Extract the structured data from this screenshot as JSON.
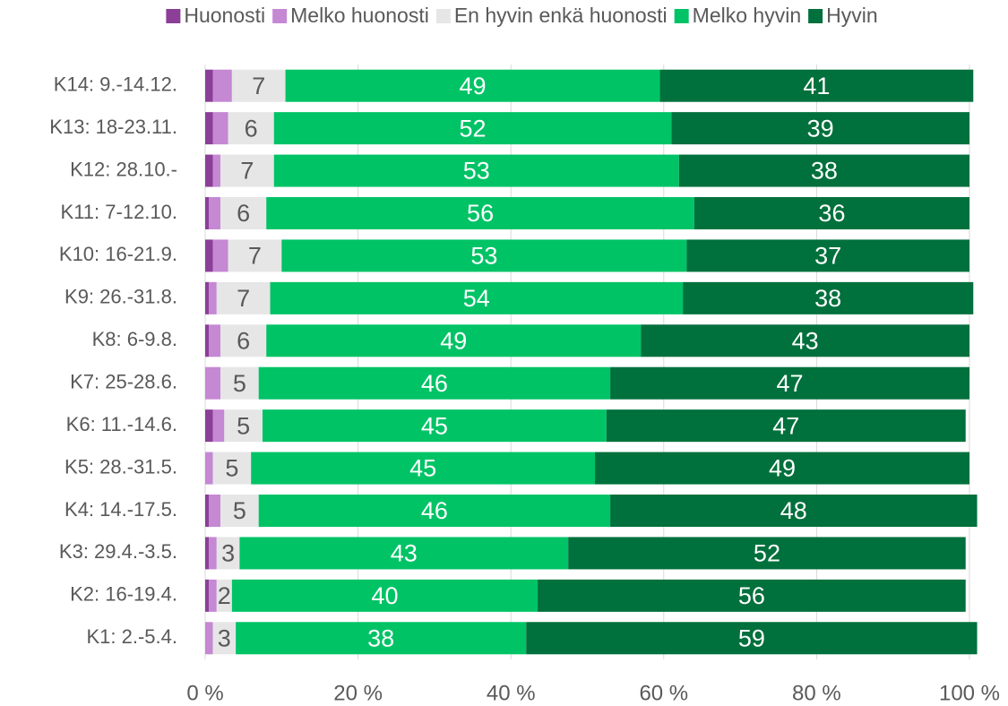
{
  "chart_data": {
    "type": "stacked_barh",
    "categories": [
      "K14: 9.-14.12.",
      "K13: 18-23.11.",
      "K12: 28.10.-",
      "K11: 7-12.10.",
      "K10: 16-21.9.",
      "K9: 26.-31.8.",
      "K8: 6-9.8.",
      "K7: 25-28.6.",
      "K6: 11.-14.6.",
      "K5: 28.-31.5.",
      "K4: 14.-17.5.",
      "K3: 29.4.-3.5.",
      "K2: 16-19.4.",
      "K1: 2.-5.4."
    ],
    "series": [
      {
        "name": "Huonosti",
        "color": "#8b3f97",
        "data_labels": false,
        "values": [
          1,
          1,
          1,
          0.5,
          1,
          0.5,
          0.5,
          0,
          1,
          0,
          0.5,
          0.5,
          0.5,
          0
        ]
      },
      {
        "name": "Melko huonosti",
        "color": "#c588d3",
        "data_labels": false,
        "values": [
          2.5,
          2,
          1,
          1.5,
          2,
          1,
          1.5,
          2,
          1.5,
          1,
          1.5,
          1,
          1,
          1
        ]
      },
      {
        "name": "En hyvin enkä huonosti",
        "color": "#e6e6e6",
        "data_labels": true,
        "label_color": "#595959",
        "values": [
          7,
          6,
          7,
          6,
          7,
          7,
          6,
          5,
          5,
          5,
          5,
          3,
          2,
          3
        ]
      },
      {
        "name": "Melko hyvin",
        "color": "#00c366",
        "data_labels": true,
        "label_color": "#ffffff",
        "values": [
          49,
          52,
          53,
          56,
          53,
          54,
          49,
          46,
          45,
          45,
          46,
          43,
          40,
          38
        ]
      },
      {
        "name": "Hyvin",
        "color": "#00703c",
        "data_labels": true,
        "label_color": "#ffffff",
        "values": [
          41,
          39,
          38,
          36,
          37,
          38,
          43,
          47,
          47,
          49,
          48,
          52,
          56,
          59
        ]
      }
    ],
    "xlim": [
      0,
      100
    ],
    "xticks": [
      {
        "value": 0,
        "label": "0 %"
      },
      {
        "value": 20,
        "label": "20 %"
      },
      {
        "value": 40,
        "label": "40 %"
      },
      {
        "value": 60,
        "label": "60 %"
      },
      {
        "value": 80,
        "label": "80 %"
      },
      {
        "value": 100,
        "label": "100 %"
      }
    ],
    "grid": true,
    "legend": "top"
  }
}
